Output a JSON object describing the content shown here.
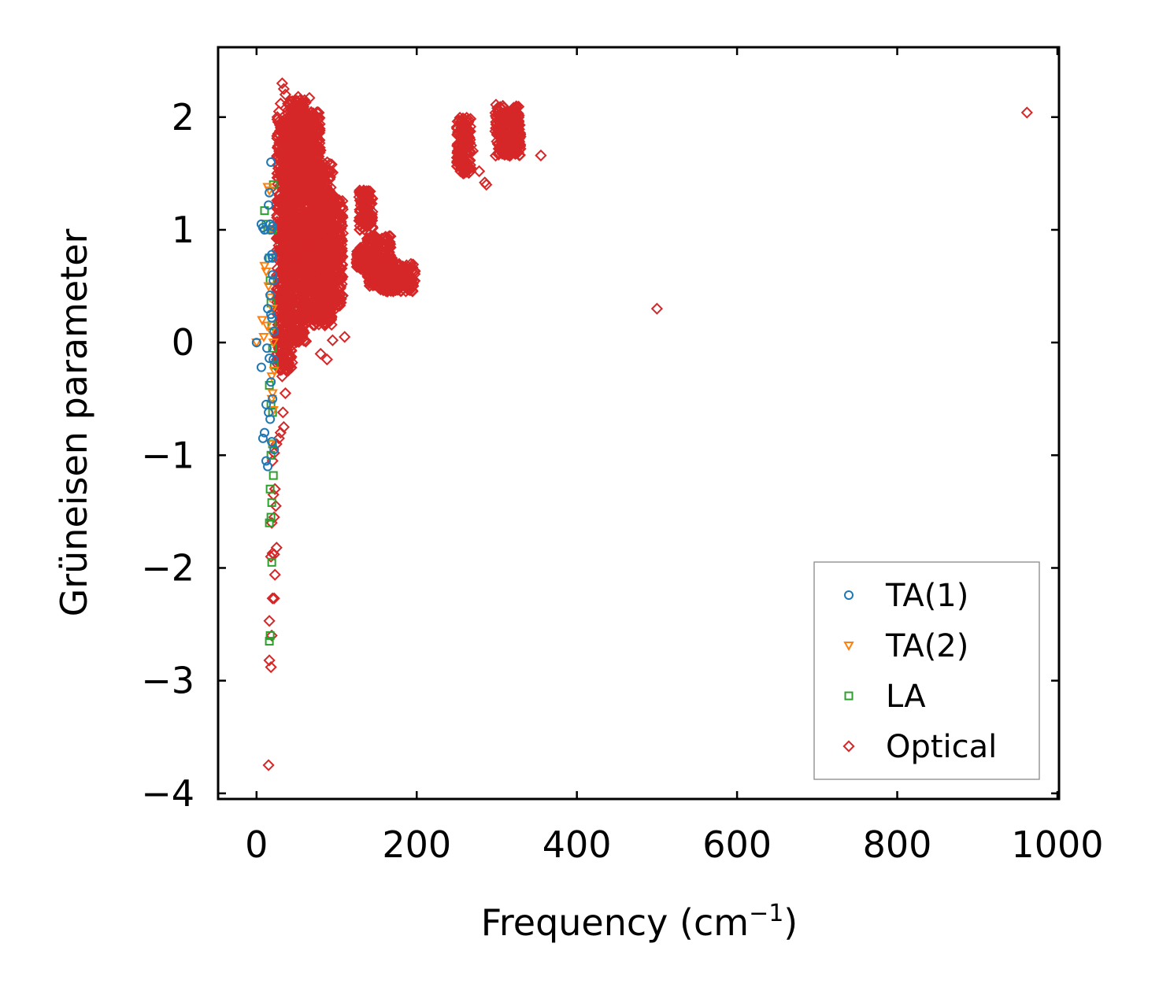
{
  "chart_data": {
    "type": "scatter",
    "title": "",
    "xlabel": "Frequency (cm",
    "xlabel_sup": "−1",
    "xlabel_close": ")",
    "ylabel": "Grüneisen parameter",
    "xlim": [
      -48,
      1002
    ],
    "ylim": [
      -4.05,
      2.62
    ],
    "xticks": [
      0,
      200,
      400,
      600,
      800,
      1000
    ],
    "xtick_labels": [
      "0",
      "200",
      "400",
      "600",
      "800",
      "1000"
    ],
    "yticks": [
      -4,
      -3,
      -2,
      -1,
      0,
      1,
      2
    ],
    "ytick_labels": [
      "−4",
      "−3",
      "−2",
      "−1",
      "0",
      "1",
      "2"
    ],
    "legend_position": "lower-right",
    "grid": false,
    "series": [
      {
        "name": "TA(1)",
        "marker": "circle",
        "color": "#1f77b4",
        "points": [
          [
            0,
            0
          ],
          [
            6,
            1.05
          ],
          [
            8,
            1.02
          ],
          [
            10,
            1.0
          ],
          [
            6,
            -0.22
          ],
          [
            8,
            -0.85
          ],
          [
            10,
            -0.8
          ],
          [
            12,
            -1.05
          ],
          [
            14,
            -1.1
          ],
          [
            15,
            1.22
          ],
          [
            16,
            1.33
          ],
          [
            17,
            1.05
          ],
          [
            18,
            1.6
          ],
          [
            19,
            0.78
          ],
          [
            20,
            0.75
          ],
          [
            17,
            0.42
          ],
          [
            18,
            0.25
          ],
          [
            19,
            0.22
          ],
          [
            20,
            0.6
          ],
          [
            21,
            0.55
          ],
          [
            16,
            -0.14
          ],
          [
            18,
            -0.35
          ],
          [
            20,
            -0.5
          ],
          [
            21,
            -0.15
          ],
          [
            15,
            -0.62
          ],
          [
            17,
            -0.68
          ],
          [
            19,
            -0.88
          ],
          [
            22,
            -0.95
          ],
          [
            13,
            -0.05
          ],
          [
            14,
            0.3
          ],
          [
            22,
            0.1
          ],
          [
            12,
            -0.55
          ],
          [
            15,
            0.75
          ],
          [
            18,
            1.0
          ],
          [
            20,
            1.03
          ]
        ]
      },
      {
        "name": "TA(2)",
        "marker": "triangle-down",
        "color": "#ff7f0e",
        "points": [
          [
            0,
            0
          ],
          [
            7,
            0.2
          ],
          [
            9,
            0.05
          ],
          [
            10,
            0.68
          ],
          [
            12,
            0.63
          ],
          [
            14,
            1.38
          ],
          [
            16,
            1.35
          ],
          [
            17,
            0.4
          ],
          [
            18,
            0.1
          ],
          [
            19,
            -0.3
          ],
          [
            20,
            -0.45
          ],
          [
            21,
            -0.6
          ],
          [
            22,
            -0.25
          ],
          [
            18,
            -0.9
          ],
          [
            16,
            1.0
          ],
          [
            15,
            0.5
          ],
          [
            20,
            0.3
          ],
          [
            13,
            0.15
          ],
          [
            19,
            -0.5
          ],
          [
            21,
            0.0
          ]
        ]
      },
      {
        "name": "LA",
        "marker": "square",
        "color": "#2ca02c",
        "points": [
          [
            10,
            1.17
          ],
          [
            12,
            1.05
          ],
          [
            14,
            1.0
          ],
          [
            16,
            0.75
          ],
          [
            17,
            0.55
          ],
          [
            18,
            0.35
          ],
          [
            19,
            0.15
          ],
          [
            20,
            -0.05
          ],
          [
            16,
            -0.38
          ],
          [
            18,
            -0.55
          ],
          [
            20,
            -0.9
          ],
          [
            21,
            -1.18
          ],
          [
            17,
            -1.3
          ],
          [
            19,
            -1.42
          ],
          [
            18,
            -1.55
          ],
          [
            16,
            -1.6
          ],
          [
            19,
            -1.95
          ],
          [
            17,
            -2.6
          ],
          [
            16,
            -2.65
          ],
          [
            20,
            1.0
          ],
          [
            21,
            1.4
          ],
          [
            22,
            -0.2
          ],
          [
            20,
            -0.62
          ],
          [
            18,
            -1.0
          ]
        ]
      },
      {
        "name": "Optical",
        "marker": "diamond",
        "color": "#d62728",
        "points": [
          [
            15,
            -3.75
          ],
          [
            16,
            -2.82
          ],
          [
            18,
            -2.88
          ],
          [
            16,
            -2.47
          ],
          [
            19,
            -2.6
          ],
          [
            20,
            -2.27
          ],
          [
            22,
            -2.27
          ],
          [
            23,
            -2.06
          ],
          [
            18,
            -1.9
          ],
          [
            20,
            -1.87
          ],
          [
            22,
            -1.88
          ],
          [
            25,
            -1.82
          ],
          [
            19,
            -1.6
          ],
          [
            22,
            -1.55
          ],
          [
            24,
            -1.45
          ],
          [
            21,
            -1.35
          ],
          [
            23,
            -1.3
          ],
          [
            20,
            -1.05
          ],
          [
            22,
            -0.98
          ],
          [
            25,
            -0.9
          ],
          [
            28,
            -0.85
          ],
          [
            30,
            -0.8
          ],
          [
            34,
            -0.75
          ],
          [
            33,
            -0.62
          ],
          [
            36,
            -0.45
          ],
          [
            38,
            -0.25
          ],
          [
            40,
            -0.22
          ],
          [
            32,
            -0.3
          ],
          [
            80,
            -0.1
          ],
          [
            88,
            -0.15
          ],
          [
            95,
            0.02
          ],
          [
            110,
            0.05
          ],
          [
            26,
            2.0
          ],
          [
            28,
            2.05
          ],
          [
            30,
            2.12
          ],
          [
            32,
            2.3
          ],
          [
            34,
            2.25
          ],
          [
            36,
            2.2
          ],
          [
            30,
            1.95
          ],
          [
            28,
            1.85
          ],
          [
            52,
            2.18
          ],
          [
            60,
            2.15
          ],
          [
            66,
            2.17
          ],
          [
            500,
            0.3
          ],
          [
            962,
            2.04
          ],
          [
            355,
            1.66
          ],
          [
            299,
            2.11
          ],
          [
            302,
            2.05
          ],
          [
            260,
            1.98
          ],
          [
            255,
            1.6
          ],
          [
            258,
            1.5
          ],
          [
            270,
            1.7
          ],
          [
            278,
            1.52
          ],
          [
            287,
            1.4
          ],
          [
            285,
            1.42
          ]
        ]
      }
    ],
    "optical_clusters": [
      {
        "x": [
          25,
          45
        ],
        "y": [
          -0.25,
          2.0
        ]
      },
      {
        "x": [
          38,
          62
        ],
        "y": [
          0.0,
          2.15
        ]
      },
      {
        "x": [
          55,
          80
        ],
        "y": [
          0.2,
          2.05
        ]
      },
      {
        "x": [
          70,
          95
        ],
        "y": [
          0.15,
          1.6
        ]
      },
      {
        "x": [
          82,
          108
        ],
        "y": [
          0.3,
          1.3
        ]
      },
      {
        "x": [
          128,
          145
        ],
        "y": [
          1.0,
          1.35
        ]
      },
      {
        "x": [
          125,
          138
        ],
        "y": [
          0.65,
          0.85
        ]
      },
      {
        "x": [
          138,
          168
        ],
        "y": [
          0.5,
          0.95
        ]
      },
      {
        "x": [
          152,
          172
        ],
        "y": [
          0.45,
          0.75
        ]
      },
      {
        "x": [
          168,
          198
        ],
        "y": [
          0.45,
          0.7
        ]
      },
      {
        "x": [
          250,
          268
        ],
        "y": [
          1.5,
          2.0
        ]
      },
      {
        "x": [
          298,
          330
        ],
        "y": [
          1.65,
          2.1
        ]
      }
    ]
  }
}
